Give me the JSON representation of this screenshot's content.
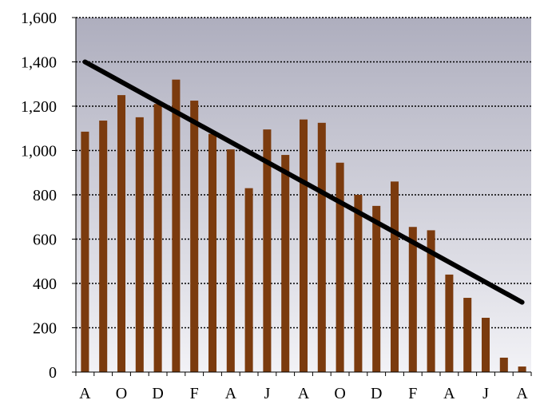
{
  "chart_data": {
    "type": "bar",
    "title": "",
    "xlabel": "",
    "ylabel": "",
    "ylim": [
      0,
      1600
    ],
    "yticks": [
      0,
      200,
      400,
      600,
      800,
      1000,
      1200,
      1400,
      1600
    ],
    "ytick_labels": [
      "0",
      "200",
      "400",
      "600",
      "800",
      "1,000",
      "1,200",
      "1,400",
      "1,600"
    ],
    "xtick_labels": [
      "A",
      "O",
      "D",
      "F",
      "A",
      "J",
      "A",
      "O",
      "D",
      "F",
      "A",
      "J",
      "A"
    ],
    "grid": true,
    "grid_style": "dotted",
    "legend": "none",
    "values": [
      1085,
      1135,
      1250,
      1150,
      1210,
      1320,
      1225,
      1075,
      1005,
      830,
      1095,
      980,
      1140,
      1125,
      945,
      800,
      750,
      860,
      655,
      640,
      440,
      335,
      245,
      65,
      25
    ],
    "trendline": {
      "start": 1400,
      "end": 315
    },
    "colors": {
      "bar": "#7b3b0e",
      "trendline": "#000000",
      "plot_bg_top": "#aeaebe",
      "plot_bg_bottom": "#f2f2f6",
      "grid": "#000000"
    }
  }
}
